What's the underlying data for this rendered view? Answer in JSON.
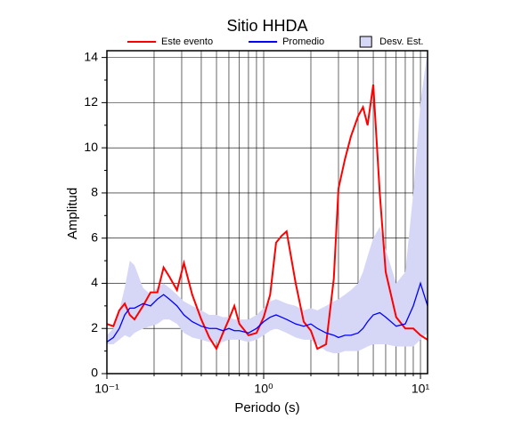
{
  "chart_data": {
    "type": "line",
    "title": "Sitio HHDA",
    "x_label": "Periodo (s)",
    "y_label": "Amplitud",
    "x_scale": "log",
    "grid": true,
    "legend": "top",
    "xlim": [
      0.1,
      11.1
    ],
    "ylim": [
      0,
      14.3
    ],
    "xticks": [
      {
        "value": 0.1,
        "label": "10⁻¹"
      },
      {
        "value": 1,
        "label": "10⁰"
      },
      {
        "value": 10,
        "label": "10¹"
      }
    ],
    "yticks": [
      0,
      2,
      4,
      6,
      8,
      10,
      12,
      14
    ],
    "x": [
      0.1,
      0.11,
      0.12,
      0.13,
      0.14,
      0.15,
      0.17,
      0.19,
      0.21,
      0.23,
      0.25,
      0.28,
      0.31,
      0.35,
      0.4,
      0.45,
      0.5,
      0.55,
      0.6,
      0.65,
      0.7,
      0.8,
      0.9,
      1.0,
      1.1,
      1.2,
      1.3,
      1.4,
      1.6,
      1.8,
      2.0,
      2.2,
      2.5,
      2.8,
      3.0,
      3.3,
      3.6,
      4.0,
      4.3,
      4.6,
      5.0,
      5.5,
      6.0,
      7.0,
      8.0,
      9.0,
      10.0,
      11.1
    ],
    "band": {
      "name": "Desv. Est.",
      "color": "#d6d6f7",
      "upper": [
        1.7,
        2.0,
        2.8,
        3.8,
        5.0,
        4.8,
        3.8,
        3.5,
        3.8,
        4.0,
        3.8,
        3.5,
        3.2,
        3.0,
        2.8,
        2.6,
        2.6,
        2.5,
        2.5,
        2.4,
        2.4,
        2.4,
        2.6,
        2.9,
        3.2,
        3.3,
        3.2,
        3.1,
        3.0,
        2.8,
        2.9,
        2.8,
        3.0,
        3.2,
        3.3,
        3.5,
        3.7,
        4.0,
        4.5,
        5.2,
        6.0,
        6.5,
        5.5,
        4.0,
        4.5,
        8.0,
        12.0,
        14.3
      ],
      "lower": [
        1.3,
        1.3,
        1.5,
        1.7,
        1.6,
        1.8,
        2.0,
        2.1,
        2.2,
        2.4,
        2.4,
        2.2,
        1.8,
        1.6,
        1.5,
        1.4,
        1.4,
        1.4,
        1.5,
        1.5,
        1.5,
        1.4,
        1.5,
        1.7,
        1.9,
        2.0,
        1.9,
        1.8,
        1.6,
        1.5,
        1.5,
        1.3,
        1.0,
        0.9,
        0.9,
        1.0,
        1.0,
        1.0,
        1.1,
        1.2,
        1.3,
        1.3,
        1.3,
        1.2,
        1.2,
        1.2,
        1.5,
        1.8
      ]
    },
    "series": [
      {
        "name": "Este evento",
        "color": "#ff0000",
        "values": [
          2.2,
          2.1,
          2.8,
          3.1,
          2.6,
          2.4,
          3.0,
          3.6,
          3.6,
          4.7,
          4.3,
          3.7,
          4.9,
          3.5,
          2.4,
          1.6,
          1.1,
          1.8,
          2.4,
          3.0,
          2.2,
          1.7,
          1.8,
          2.5,
          3.5,
          5.8,
          6.1,
          6.3,
          4.0,
          2.3,
          1.9,
          1.1,
          1.3,
          4.2,
          8.2,
          9.5,
          10.5,
          11.4,
          11.8,
          11.0,
          12.8,
          8.0,
          4.5,
          2.5,
          2.0,
          2.0,
          1.7,
          1.5
        ]
      },
      {
        "name": "Promedio",
        "color": "#0000ff",
        "values": [
          1.4,
          1.6,
          2.0,
          2.6,
          2.9,
          2.9,
          3.1,
          3.0,
          3.3,
          3.5,
          3.3,
          3.0,
          2.6,
          2.3,
          2.1,
          2.0,
          2.0,
          1.9,
          2.0,
          1.9,
          1.9,
          1.8,
          2.0,
          2.3,
          2.5,
          2.6,
          2.5,
          2.4,
          2.2,
          2.1,
          2.2,
          2.0,
          1.8,
          1.7,
          1.6,
          1.7,
          1.7,
          1.8,
          2.0,
          2.3,
          2.6,
          2.7,
          2.5,
          2.1,
          2.2,
          3.0,
          4.0,
          3.0
        ]
      }
    ]
  }
}
